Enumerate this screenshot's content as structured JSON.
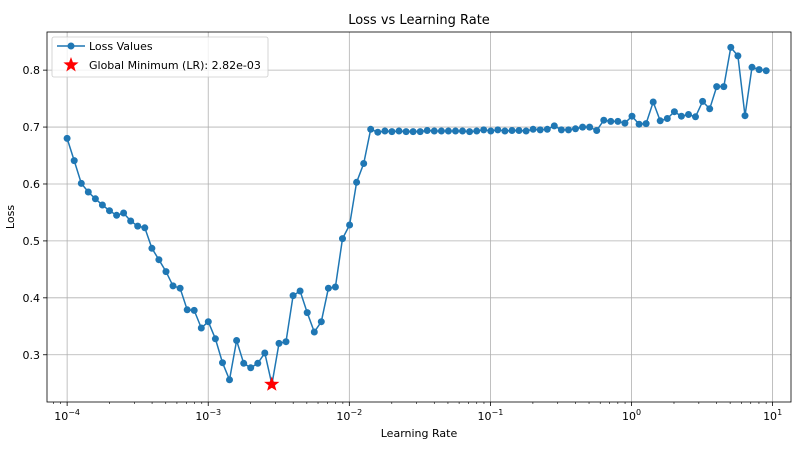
{
  "chart_data": {
    "type": "line",
    "title": "Loss vs Learning Rate",
    "xlabel": "Learning Rate",
    "ylabel": "Loss",
    "xscale": "log",
    "xlim": [
      7.2e-05,
      13.5
    ],
    "ylim": [
      0.217,
      0.867
    ],
    "x_ticks": [
      {
        "value": 0.0001,
        "base": "10",
        "exp": "−4"
      },
      {
        "value": 0.001,
        "base": "10",
        "exp": "−3"
      },
      {
        "value": 0.01,
        "base": "10",
        "exp": "−2"
      },
      {
        "value": 0.1,
        "base": "10",
        "exp": "−1"
      },
      {
        "value": 1,
        "base": "10",
        "exp": "0"
      },
      {
        "value": 10,
        "base": "10",
        "exp": "1"
      }
    ],
    "y_ticks": [
      {
        "value": 0.3,
        "label": "0.3"
      },
      {
        "value": 0.4,
        "label": "0.4"
      },
      {
        "value": 0.5,
        "label": "0.5"
      },
      {
        "value": 0.6,
        "label": "0.6"
      },
      {
        "value": 0.7,
        "label": "0.7"
      },
      {
        "value": 0.8,
        "label": "0.8"
      }
    ],
    "grid": true,
    "legend_position": "top-left",
    "colors": {
      "series": "#1f77b4",
      "minimum": "#ff0000",
      "grid": "#b0b0b0"
    },
    "series": [
      {
        "name": "Loss Values",
        "values": [
          0.68,
          0.641,
          0.601,
          0.586,
          0.574,
          0.563,
          0.553,
          0.545,
          0.549,
          0.535,
          0.526,
          0.523,
          0.487,
          0.467,
          0.446,
          0.421,
          0.417,
          0.379,
          0.378,
          0.347,
          0.358,
          0.328,
          0.286,
          0.256,
          0.325,
          0.285,
          0.277,
          0.285,
          0.303,
          0.248,
          0.32,
          0.323,
          0.404,
          0.412,
          0.374,
          0.34,
          0.358,
          0.417,
          0.419,
          0.504,
          0.528,
          0.603,
          0.636,
          0.696,
          0.691,
          0.693,
          0.692,
          0.693,
          0.692,
          0.692,
          0.692,
          0.694,
          0.693,
          0.693,
          0.693,
          0.693,
          0.693,
          0.692,
          0.693,
          0.695,
          0.693,
          0.695,
          0.693,
          0.694,
          0.694,
          0.693,
          0.696,
          0.695,
          0.696,
          0.702,
          0.695,
          0.695,
          0.697,
          0.7,
          0.7,
          0.694,
          0.712,
          0.71,
          0.71,
          0.707,
          0.719,
          0.705,
          0.706,
          0.744,
          0.711,
          0.715,
          0.727,
          0.719,
          0.722,
          0.718,
          0.745,
          0.732,
          0.771,
          0.771,
          0.84,
          0.825,
          0.72,
          0.805,
          0.801,
          0.799
        ]
      },
      {
        "name": "Global Minimum (LR): 2.82e-03",
        "x": [
          0.00282
        ],
        "values": [
          0.248
        ]
      }
    ],
    "x_range_of_series": {
      "start": 0.0001,
      "stop": 9.0
    }
  }
}
